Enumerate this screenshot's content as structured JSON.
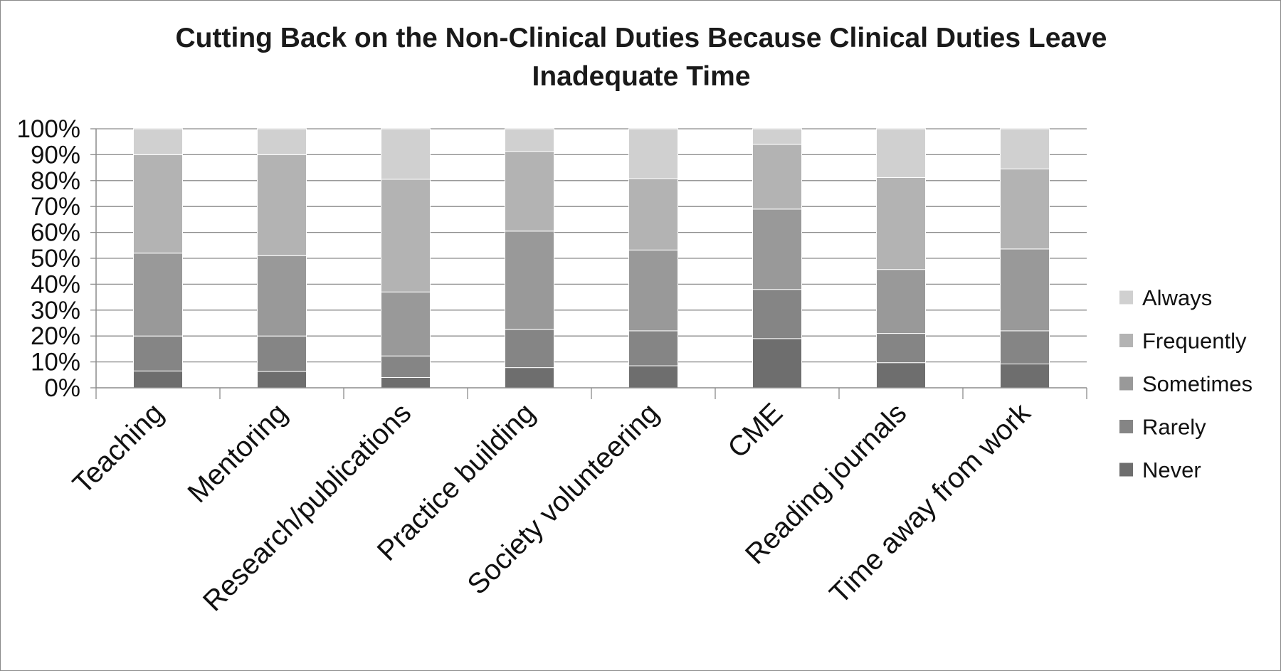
{
  "chart_data": {
    "type": "bar",
    "stacked": true,
    "title": "Cutting Back on the Non-Clinical Duties Because Clinical Duties Leave Inadequate Time",
    "xlabel": "",
    "ylabel": "",
    "ylim": [
      0,
      100
    ],
    "y_ticks": [
      "0%",
      "10%",
      "20%",
      "30%",
      "40%",
      "50%",
      "60%",
      "70%",
      "80%",
      "90%",
      "100%"
    ],
    "grid": true,
    "legend_position": "right",
    "categories": [
      "Teaching",
      "Mentoring",
      "Research/publications",
      "Practice building",
      "Society volunteering",
      "CME",
      "Reading journals",
      "Time away from work"
    ],
    "series": [
      {
        "name": "Never",
        "color": "#6e6e6e",
        "values": [
          6.5,
          6.3,
          4.0,
          7.8,
          8.5,
          19.0,
          9.7,
          9.2
        ]
      },
      {
        "name": "Rarely",
        "color": "#858585",
        "values": [
          13.5,
          13.7,
          8.3,
          14.7,
          13.5,
          19.0,
          11.3,
          12.8
        ]
      },
      {
        "name": "Sometimes",
        "color": "#999999",
        "values": [
          32.0,
          31.0,
          24.7,
          38.0,
          31.2,
          31.0,
          24.7,
          31.6
        ]
      },
      {
        "name": "Frequently",
        "color": "#b3b3b3",
        "values": [
          38.0,
          39.0,
          43.5,
          30.8,
          27.6,
          25.0,
          35.5,
          30.9
        ]
      },
      {
        "name": "Always",
        "color": "#d0d0d0",
        "values": [
          10.0,
          10.0,
          19.5,
          8.7,
          19.2,
          6.0,
          18.8,
          15.5
        ]
      }
    ],
    "legend_order": [
      "Always",
      "Frequently",
      "Sometimes",
      "Rarely",
      "Never"
    ]
  }
}
